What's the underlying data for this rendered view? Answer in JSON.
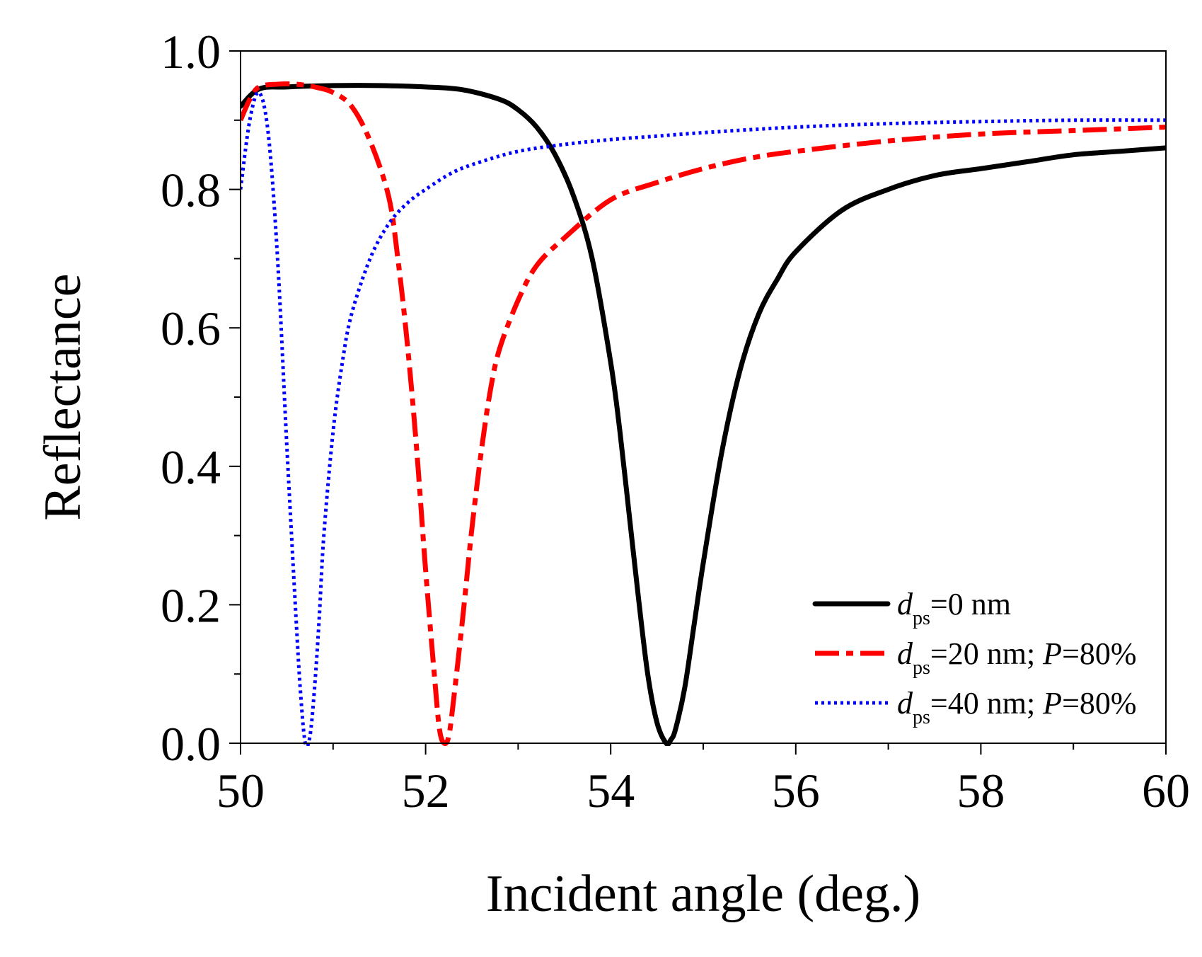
{
  "chart_data": {
    "type": "line",
    "title": "",
    "xlabel": "Incident angle (deg.)",
    "ylabel": "Reflectance",
    "xlim": [
      50,
      60
    ],
    "ylim": [
      0.0,
      1.0
    ],
    "xticks": [
      50,
      52,
      54,
      56,
      58,
      60
    ],
    "xtick_labels": [
      "50",
      "52",
      "54",
      "56",
      "58",
      "60"
    ],
    "yticks": [
      0.0,
      0.2,
      0.4,
      0.6,
      0.8,
      1.0
    ],
    "ytick_labels": [
      "0.0",
      "0.2",
      "0.4",
      "0.6",
      "0.8",
      "1.0"
    ],
    "grid": false,
    "legend_position": "bottom-right",
    "series": [
      {
        "name": "d_ps=0 nm",
        "legend": {
          "var": "d",
          "sub": "ps",
          "rest": "=0 nm",
          "p_var": "",
          "p_rest": ""
        },
        "color": "#000000",
        "style": "solid",
        "x": [
          50.0,
          50.2,
          50.5,
          51.0,
          51.5,
          52.0,
          52.4,
          52.8,
          53.0,
          53.2,
          53.4,
          53.6,
          53.8,
          54.0,
          54.1,
          54.2,
          54.3,
          54.4,
          54.5,
          54.6,
          54.65,
          54.7,
          54.8,
          54.9,
          55.0,
          55.2,
          55.4,
          55.6,
          55.8,
          56.0,
          56.5,
          57.0,
          57.5,
          58.0,
          58.5,
          59.0,
          59.5,
          60.0
        ],
        "y": [
          0.92,
          0.945,
          0.948,
          0.95,
          0.95,
          0.948,
          0.944,
          0.93,
          0.915,
          0.89,
          0.85,
          0.79,
          0.7,
          0.55,
          0.45,
          0.33,
          0.21,
          0.1,
          0.03,
          0.0,
          0.005,
          0.02,
          0.08,
          0.17,
          0.26,
          0.42,
          0.54,
          0.62,
          0.67,
          0.71,
          0.77,
          0.8,
          0.82,
          0.83,
          0.84,
          0.85,
          0.855,
          0.86
        ]
      },
      {
        "name": "d_ps=20 nm; P=80%",
        "legend": {
          "var": "d",
          "sub": "ps",
          "rest": "=20 nm; ",
          "p_var": "P",
          "p_rest": "=80%"
        },
        "color": "#ff0000",
        "style": "dashdot",
        "x": [
          50.0,
          50.1,
          50.2,
          50.4,
          50.6,
          50.8,
          51.0,
          51.2,
          51.4,
          51.6,
          51.7,
          51.8,
          51.9,
          52.0,
          52.1,
          52.15,
          52.2,
          52.25,
          52.3,
          52.4,
          52.5,
          52.6,
          52.7,
          52.8,
          53.0,
          53.2,
          53.5,
          54.0,
          54.5,
          55.0,
          55.5,
          56.0,
          57.0,
          58.0,
          59.0,
          60.0
        ],
        "y": [
          0.9,
          0.93,
          0.948,
          0.952,
          0.952,
          0.948,
          0.94,
          0.92,
          0.87,
          0.79,
          0.7,
          0.58,
          0.43,
          0.25,
          0.09,
          0.02,
          0.0,
          0.01,
          0.06,
          0.18,
          0.31,
          0.42,
          0.51,
          0.57,
          0.64,
          0.69,
          0.73,
          0.785,
          0.81,
          0.83,
          0.845,
          0.855,
          0.87,
          0.88,
          0.885,
          0.89
        ]
      },
      {
        "name": "d_ps=40 nm; P=80%",
        "legend": {
          "var": "d",
          "sub": "ps",
          "rest": "=40 nm; ",
          "p_var": "P",
          "p_rest": "=80%"
        },
        "color": "#0000ff",
        "style": "dotted",
        "x": [
          50.0,
          50.1,
          50.2,
          50.3,
          50.4,
          50.5,
          50.6,
          50.65,
          50.7,
          50.75,
          50.8,
          50.85,
          50.9,
          51.0,
          51.1,
          51.2,
          51.4,
          51.6,
          51.8,
          52.0,
          52.3,
          52.6,
          53.0,
          53.5,
          54.0,
          54.5,
          55.0,
          56.0,
          57.0,
          58.0,
          59.0,
          60.0
        ],
        "y": [
          0.8,
          0.9,
          0.94,
          0.88,
          0.7,
          0.43,
          0.18,
          0.07,
          0.0,
          0.01,
          0.08,
          0.18,
          0.3,
          0.45,
          0.55,
          0.62,
          0.7,
          0.75,
          0.78,
          0.8,
          0.825,
          0.84,
          0.855,
          0.865,
          0.872,
          0.877,
          0.882,
          0.89,
          0.895,
          0.898,
          0.9,
          0.9
        ]
      }
    ]
  }
}
